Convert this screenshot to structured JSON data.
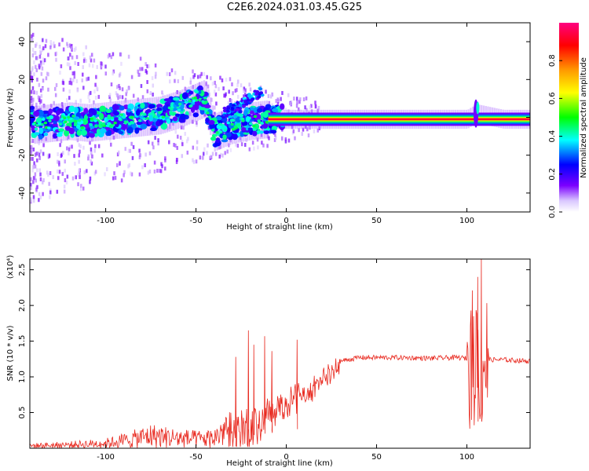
{
  "title": "C2E6.2024.031.03.45.G25",
  "chart_data": [
    {
      "type": "heatmap",
      "xlabel": "Height of straight line (km)",
      "ylabel": "Frequency (Hz)",
      "xlim": [
        -142,
        135
      ],
      "ylim": [
        -50,
        50
      ],
      "x_ticks": [
        -100,
        -50,
        0,
        50,
        100
      ],
      "y_ticks": [
        -40,
        -20,
        0,
        20,
        40
      ],
      "colorbar": {
        "label": "Normalized spectral amplitude",
        "range": [
          0,
          1
        ],
        "ticks": [
          "0.0",
          "0.2",
          "0.4",
          "0.6",
          "0.8"
        ],
        "colors": [
          "#ffffff",
          "#7b00ff",
          "#0000ff",
          "#00ffff",
          "#00ff00",
          "#ffff00",
          "#ff7f00",
          "#ff0000",
          "#ff0080"
        ]
      },
      "ridge": [
        {
          "x": -140,
          "f": -4,
          "a": 0.35
        },
        {
          "x": -130,
          "f": -3,
          "a": 0.4
        },
        {
          "x": -120,
          "f": -2,
          "a": 0.45
        },
        {
          "x": -110,
          "f": -3,
          "a": 0.4
        },
        {
          "x": -100,
          "f": -2,
          "a": 0.4
        },
        {
          "x": -90,
          "f": -1,
          "a": 0.4
        },
        {
          "x": -80,
          "f": 0,
          "a": 0.45
        },
        {
          "x": -70,
          "f": 1,
          "a": 0.45
        },
        {
          "x": -60,
          "f": 4,
          "a": 0.5
        },
        {
          "x": -50,
          "f": 8,
          "a": 0.5
        },
        {
          "x": -45,
          "f": 10,
          "a": 0.5
        },
        {
          "x": -40,
          "f": -8,
          "a": 0.35
        },
        {
          "x": -30,
          "f": -4,
          "a": 0.45
        },
        {
          "x": -20,
          "f": -2,
          "a": 0.45
        },
        {
          "x": -10,
          "f": -1,
          "a": 0.6
        },
        {
          "x": 0,
          "f": -1,
          "a": 0.9
        },
        {
          "x": 20,
          "f": -1,
          "a": 0.9
        },
        {
          "x": 50,
          "f": -1,
          "a": 1.0
        },
        {
          "x": 80,
          "f": -1,
          "a": 1.0
        },
        {
          "x": 100,
          "f": -1,
          "a": 1.0
        },
        {
          "x": 105,
          "f": 2,
          "a": 0.5
        },
        {
          "x": 120,
          "f": -1,
          "a": 1.0
        },
        {
          "x": 135,
          "f": -1,
          "a": 1.0
        }
      ]
    },
    {
      "type": "line",
      "xlabel": "Height of straight line (km)",
      "ylabel": "SNR (10 * v/v)",
      "y_multiplier": "(x10⁴)",
      "xlim": [
        -142,
        135
      ],
      "ylim": [
        0,
        2.65
      ],
      "x_ticks": [
        -100,
        -50,
        0,
        50,
        100
      ],
      "y_ticks": [
        0.5,
        1.0,
        1.5,
        2.0,
        2.5
      ],
      "y_tick_labels": [
        "0.5",
        "1.0",
        "1.5",
        "2.0",
        "2.5"
      ],
      "color": "#e8281e",
      "envelope": [
        {
          "x": -142,
          "y": 0.05
        },
        {
          "x": -120,
          "y": 0.07
        },
        {
          "x": -100,
          "y": 0.1
        },
        {
          "x": -85,
          "y": 0.18
        },
        {
          "x": -75,
          "y": 0.25
        },
        {
          "x": -60,
          "y": 0.2
        },
        {
          "x": -50,
          "y": 0.18
        },
        {
          "x": -40,
          "y": 0.2
        },
        {
          "x": -30,
          "y": 0.5
        },
        {
          "x": -20,
          "y": 0.6
        },
        {
          "x": -10,
          "y": 0.7
        },
        {
          "x": 0,
          "y": 0.8
        },
        {
          "x": 10,
          "y": 0.95
        },
        {
          "x": 20,
          "y": 1.1
        },
        {
          "x": 30,
          "y": 1.22
        },
        {
          "x": 40,
          "y": 1.27
        },
        {
          "x": 60,
          "y": 1.27
        },
        {
          "x": 80,
          "y": 1.26
        },
        {
          "x": 95,
          "y": 1.27
        },
        {
          "x": 103,
          "y": 1.25
        },
        {
          "x": 110,
          "y": 1.24
        },
        {
          "x": 120,
          "y": 1.24
        },
        {
          "x": 135,
          "y": 1.22
        }
      ],
      "spikes": [
        {
          "x": -28,
          "y": 1.28
        },
        {
          "x": -21,
          "y": 1.65
        },
        {
          "x": -18,
          "y": 1.45
        },
        {
          "x": -12,
          "y": 1.57
        },
        {
          "x": -8,
          "y": 1.36
        },
        {
          "x": 6,
          "y": 1.52
        },
        {
          "x": 106,
          "y": 2.4
        },
        {
          "x": 108,
          "y": 2.65
        }
      ]
    }
  ]
}
